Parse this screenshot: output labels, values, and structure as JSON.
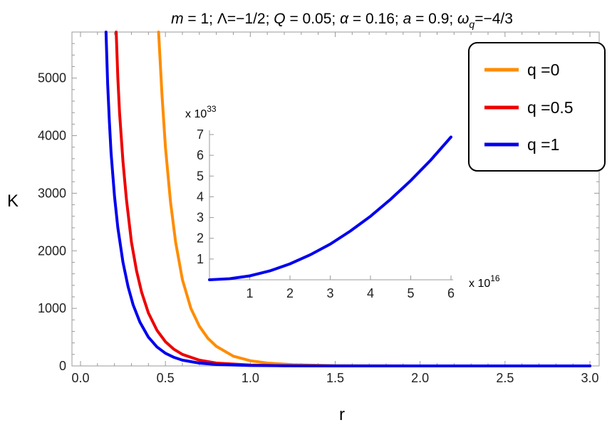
{
  "chart_data": [
    {
      "type": "line",
      "title": "m = 1; Λ=−1/2; Q = 0.05; α = 0.16; a = 0.9; ω_q=−4/3",
      "title_parts": {
        "p1": "m",
        "p2": " = 1; Λ=−1/2; ",
        "p3": "Q",
        "p4": " = 0.05; ",
        "p5": "α",
        "p6": " = 0.16; ",
        "p7": "a",
        "p8": " = 0.9; ",
        "p9": "ω",
        "p10": "q",
        "p11": "=−4/3"
      },
      "xlabel": "r",
      "ylabel": "K",
      "xlim": [
        0.0,
        3.0
      ],
      "ylim": [
        0,
        5800
      ],
      "xticks": [
        0.0,
        0.5,
        1.0,
        1.5,
        2.0,
        2.5,
        3.0
      ],
      "xtick_labels": [
        "0.0",
        "0.5",
        "1.0",
        "1.5",
        "2.0",
        "2.5",
        "3.0"
      ],
      "yticks": [
        0,
        1000,
        2000,
        3000,
        4000,
        5000
      ],
      "ytick_labels": [
        "0",
        "1000",
        "2000",
        "3000",
        "4000",
        "5000"
      ],
      "grid": false,
      "legend_position": "top-right",
      "series": [
        {
          "name": "q =0",
          "color": "#ff8c00",
          "x": [
            0.46,
            0.48,
            0.5,
            0.53,
            0.56,
            0.6,
            0.65,
            0.7,
            0.75,
            0.8,
            0.9,
            1.0,
            1.1,
            1.25,
            1.5,
            2.0,
            2.5,
            3.0
          ],
          "y": [
            5800,
            4700,
            3800,
            2850,
            2150,
            1500,
            1000,
            690,
            480,
            340,
            170,
            90,
            50,
            22,
            5,
            0,
            0,
            0
          ]
        },
        {
          "name": "q =0.5",
          "color": "#ee0000",
          "x": [
            0.21,
            0.22,
            0.23,
            0.25,
            0.27,
            0.3,
            0.33,
            0.36,
            0.4,
            0.45,
            0.5,
            0.55,
            0.6,
            0.7,
            0.8,
            1.0,
            1.2,
            1.5,
            2.0,
            3.0
          ],
          "y": [
            5800,
            5000,
            4400,
            3550,
            2900,
            2150,
            1650,
            1280,
            920,
            620,
            420,
            290,
            200,
            100,
            50,
            15,
            4,
            0,
            0,
            0
          ]
        },
        {
          "name": "q =1",
          "color": "#0000ee",
          "x": [
            0.15,
            0.16,
            0.17,
            0.18,
            0.2,
            0.22,
            0.25,
            0.28,
            0.31,
            0.35,
            0.4,
            0.45,
            0.5,
            0.55,
            0.6,
            0.7,
            0.8,
            1.0,
            1.2,
            1.5,
            2.0,
            3.0
          ],
          "y": [
            5800,
            4900,
            4250,
            3700,
            2950,
            2400,
            1800,
            1380,
            1060,
            760,
            500,
            330,
            220,
            150,
            100,
            50,
            25,
            7,
            2,
            0,
            0,
            0
          ]
        }
      ]
    },
    {
      "type": "line",
      "title": "",
      "xlabel": "",
      "ylabel": "",
      "x_multiplier": "x 10",
      "x_exponent": "16",
      "y_multiplier": "x 10",
      "y_exponent": "33",
      "xlim": [
        0,
        6
      ],
      "ylim": [
        0,
        7
      ],
      "xticks": [
        1,
        2,
        3,
        4,
        5,
        6
      ],
      "xtick_labels": [
        "1",
        "2",
        "3",
        "4",
        "5",
        "6"
      ],
      "yticks": [
        1,
        2,
        3,
        4,
        5,
        6,
        7
      ],
      "ytick_labels": [
        "1",
        "2",
        "3",
        "4",
        "5",
        "6",
        "7"
      ],
      "grid": false,
      "series": [
        {
          "color": "#0000ee",
          "x": [
            0.0,
            0.5,
            1.0,
            1.5,
            2.0,
            2.5,
            3.0,
            3.5,
            4.0,
            4.5,
            5.0,
            5.5,
            6.0
          ],
          "y": [
            0.0,
            0.05,
            0.19,
            0.43,
            0.77,
            1.2,
            1.72,
            2.35,
            3.06,
            3.88,
            4.78,
            5.78,
            6.88
          ]
        }
      ]
    }
  ],
  "legend": {
    "items": [
      {
        "label": "q =0",
        "color": "#ff8c00"
      },
      {
        "label": "q =0.5",
        "color": "#ee0000"
      },
      {
        "label": "q =1",
        "color": "#0000ee"
      }
    ]
  }
}
